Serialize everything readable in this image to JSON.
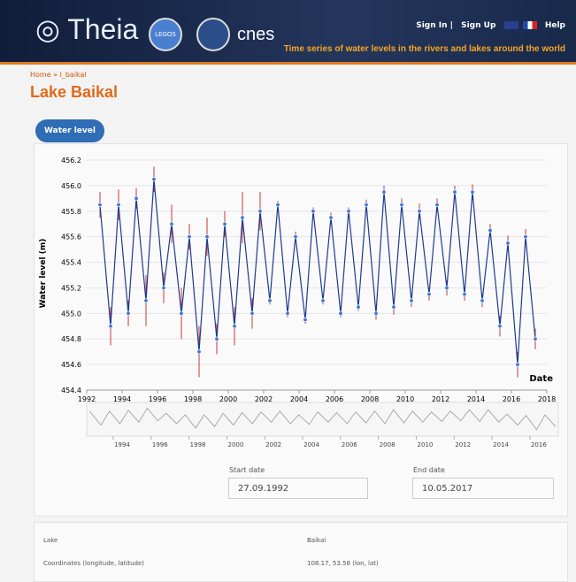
{
  "header": {
    "logo": "Theia",
    "partner": "LEGOS",
    "partner2": "cnes",
    "links": [
      "Sign In",
      "Sign Up",
      "Help"
    ],
    "tagline": "Time series of water levels in the rivers and lakes around the world"
  },
  "breadcrumb": {
    "home": "Home",
    "separator": "»",
    "current": "l_baikal"
  },
  "title": "Lake Baikal",
  "tab": "Water level (m)",
  "chart_data": {
    "type": "line-errorbar",
    "y_label": "Water level (m)",
    "x_label": "Date",
    "xlim": [
      1992,
      2018
    ],
    "xticks": [
      1992,
      1994,
      1996,
      1998,
      2000,
      2002,
      2004,
      2006,
      2008,
      2010,
      2012,
      2014,
      2016,
      2018
    ],
    "ylim": [
      454.4,
      456.2
    ],
    "yticks": [
      454.4,
      454.6,
      454.8,
      {
        "value": 455,
        "label": "455.0"
      },
      455.2,
      455.4,
      455.6,
      455.8,
      {
        "value": 456,
        "label": "456.0"
      },
      456.2
    ],
    "grid": true,
    "series": [
      {
        "color": "#1f3b8c",
        "marker_color": "#3a78e0",
        "error_color": "#c43a3a",
        "x": [
          1992.75,
          1993.35,
          1993.8,
          1994.35,
          1994.8,
          1995.35,
          1995.8,
          1996.35,
          1996.8,
          1997.35,
          1997.8,
          1998.35,
          1998.8,
          1999.35,
          1999.8,
          2000.35,
          2000.8,
          2001.35,
          2001.8,
          2002.35,
          2002.8,
          2003.35,
          2003.8,
          2004.35,
          2004.8,
          2005.35,
          2005.8,
          2006.35,
          2006.8,
          2007.35,
          2007.8,
          2008.35,
          2008.8,
          2009.35,
          2009.8,
          2010.35,
          2010.8,
          2011.35,
          2011.8,
          2012.35,
          2012.8,
          2013.35,
          2013.8,
          2014.35,
          2014.8,
          2015.35,
          2015.8,
          2016.35,
          2016.8,
          2017.35
        ],
        "values": [
          455.85,
          454.9,
          455.85,
          455.0,
          455.9,
          455.1,
          456.05,
          455.2,
          455.7,
          455.0,
          455.6,
          454.7,
          455.6,
          454.8,
          455.7,
          454.9,
          455.75,
          455.0,
          455.8,
          455.1,
          455.85,
          455.0,
          455.6,
          454.95,
          455.8,
          455.1,
          455.75,
          455.0,
          455.8,
          455.05,
          455.85,
          455.0,
          455.95,
          455.05,
          455.85,
          455.1,
          455.8,
          455.15,
          455.85,
          455.2,
          455.95,
          455.15,
          455.95,
          455.1,
          455.65,
          454.9,
          455.55,
          454.6,
          455.6,
          454.8
        ],
        "errors": [
          0.1,
          0.15,
          0.12,
          0.1,
          0.08,
          0.2,
          0.1,
          0.12,
          0.15,
          0.2,
          0.1,
          0.2,
          0.15,
          0.12,
          0.1,
          0.15,
          0.2,
          0.12,
          0.15,
          0.03,
          0.03,
          0.03,
          0.04,
          0.03,
          0.03,
          0.03,
          0.04,
          0.03,
          0.03,
          0.03,
          0.04,
          0.05,
          0.05,
          0.06,
          0.05,
          0.05,
          0.06,
          0.05,
          0.05,
          0.06,
          0.05,
          0.05,
          0.06,
          0.05,
          0.05,
          0.08,
          0.06,
          0.1,
          0.06,
          0.08
        ]
      }
    ],
    "navigator": {
      "xlim": [
        1992.6,
        2017.5
      ],
      "xticks": [
        1994,
        1996,
        1998,
        2000,
        2002,
        2004,
        2006,
        2008,
        2010,
        2012,
        2014,
        2016
      ]
    }
  },
  "range": {
    "start_label": "Start date",
    "start": "27.09.1992",
    "end_label": "End date",
    "end": "10.05.2017"
  },
  "info": {
    "rows": [
      [
        "Lake",
        "Baikal"
      ],
      [
        "Coordinates (longitude, latitude)",
        "108.17, 53.58 (lon, lat)"
      ]
    ]
  }
}
